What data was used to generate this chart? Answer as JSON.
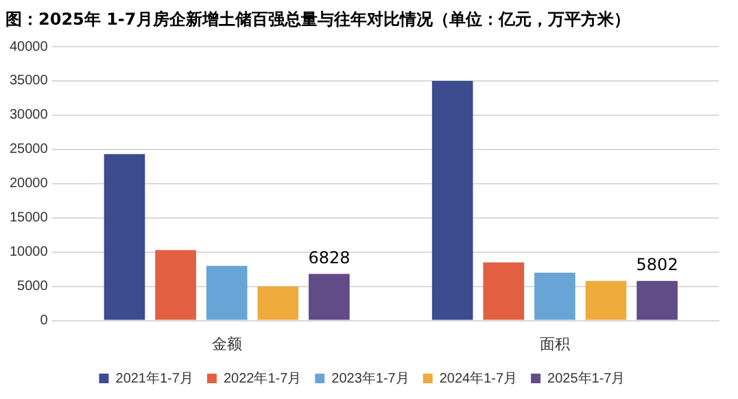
{
  "chart_data": {
    "type": "bar",
    "title": "图：2025年 1-7月房企新增土储百强总量与往年对比情况（单位：亿元，万平方米）",
    "categories": [
      "金额",
      "面积"
    ],
    "series": [
      {
        "name": "2021年1-7月",
        "color": "#3d4b8f",
        "values": [
          24300,
          35000
        ]
      },
      {
        "name": "2022年1-7月",
        "color": "#e35f41",
        "values": [
          10300,
          8500
        ]
      },
      {
        "name": "2023年1-7月",
        "color": "#68a5d6",
        "values": [
          8000,
          7000
        ]
      },
      {
        "name": "2024年1-7月",
        "color": "#eeab3b",
        "values": [
          5000,
          5800
        ]
      },
      {
        "name": "2025年1-7月",
        "color": "#614c87",
        "values": [
          6828,
          5802
        ],
        "value_labels": [
          "6828",
          "5802"
        ]
      }
    ],
    "ylim": [
      0,
      40000
    ],
    "yticks": [
      0,
      5000,
      10000,
      15000,
      20000,
      25000,
      30000,
      35000,
      40000
    ],
    "grid": "y",
    "legend": "bottom"
  }
}
